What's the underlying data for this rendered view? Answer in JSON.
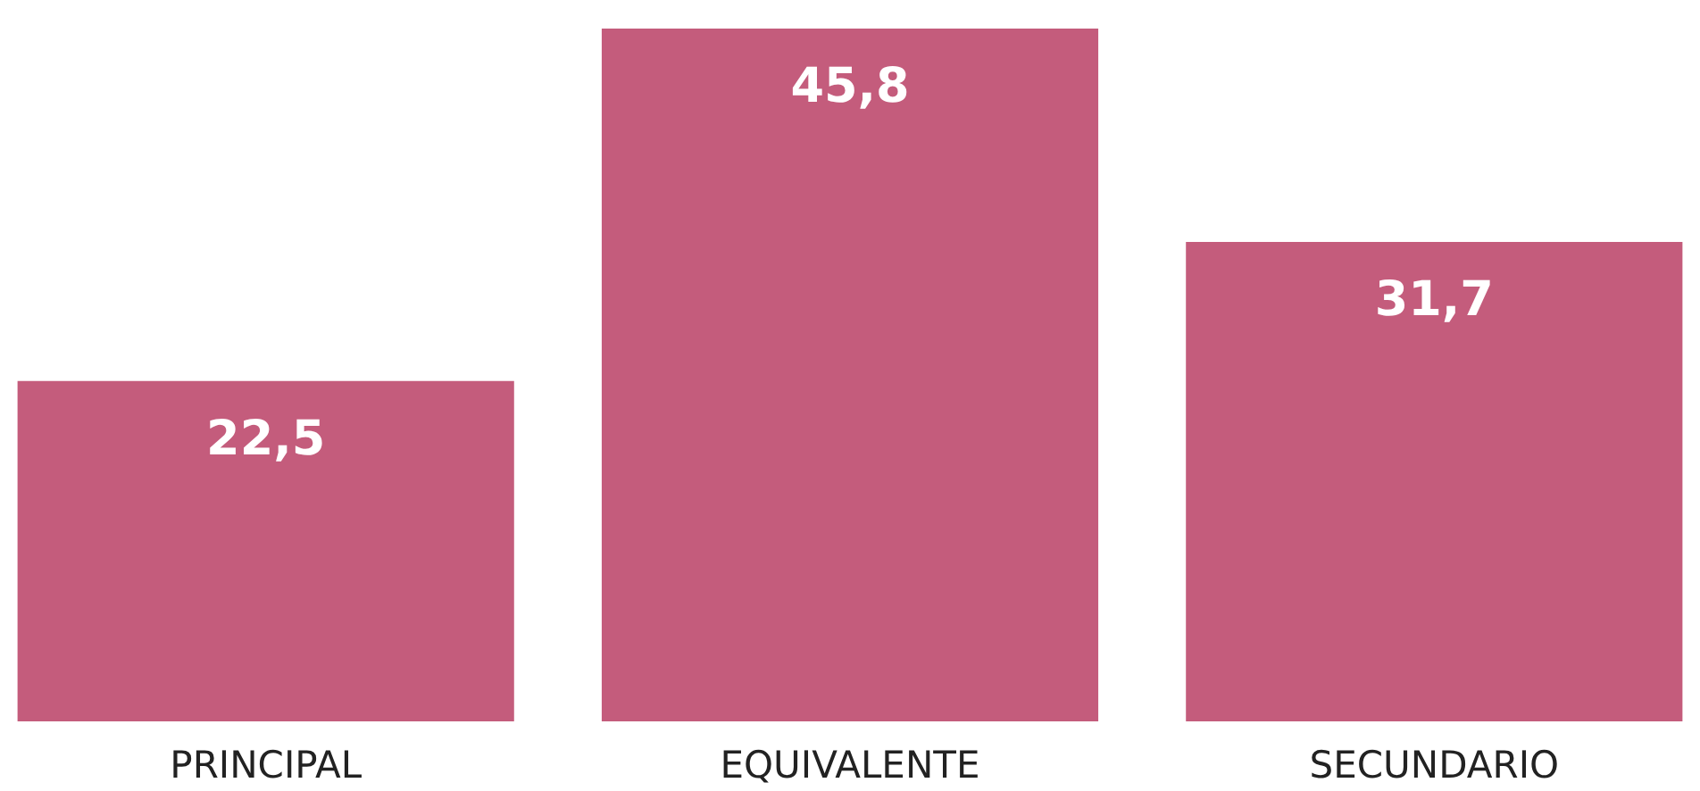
{
  "chart_data": {
    "type": "bar",
    "categories": [
      "PRINCIPAL",
      "EQUIVALENTE",
      "SECUNDARIO"
    ],
    "values": [
      22.5,
      45.8,
      31.7
    ],
    "value_labels": [
      "22,5",
      "45,8",
      "31,7"
    ],
    "color": "#c45c7c"
  }
}
